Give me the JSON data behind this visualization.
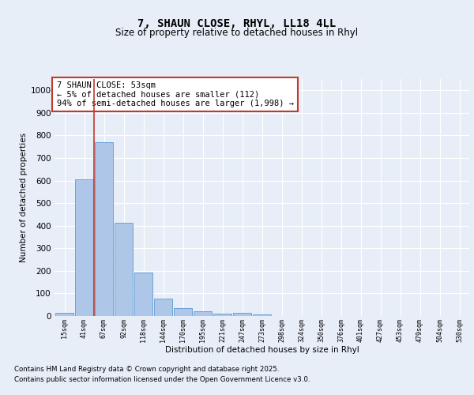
{
  "title": "7, SHAUN CLOSE, RHYL, LL18 4LL",
  "subtitle": "Size of property relative to detached houses in Rhyl",
  "xlabel": "Distribution of detached houses by size in Rhyl",
  "ylabel": "Number of detached properties",
  "bar_labels": [
    "15sqm",
    "41sqm",
    "67sqm",
    "92sqm",
    "118sqm",
    "144sqm",
    "170sqm",
    "195sqm",
    "221sqm",
    "247sqm",
    "273sqm",
    "298sqm",
    "324sqm",
    "350sqm",
    "376sqm",
    "401sqm",
    "427sqm",
    "453sqm",
    "479sqm",
    "504sqm",
    "530sqm"
  ],
  "bar_values": [
    15,
    607,
    770,
    413,
    193,
    78,
    35,
    20,
    12,
    15,
    6,
    0,
    0,
    0,
    0,
    0,
    0,
    0,
    0,
    0,
    0
  ],
  "bar_color": "#aec6e8",
  "bar_edge_color": "#5b9bd5",
  "vline_x": 1.5,
  "vline_color": "#c0392b",
  "annotation_text": "7 SHAUN CLOSE: 53sqm\n← 5% of detached houses are smaller (112)\n94% of semi-detached houses are larger (1,998) →",
  "annotation_box_color": "#ffffff",
  "annotation_box_edge": "#c0392b",
  "ylim": [
    0,
    1050
  ],
  "yticks": [
    0,
    100,
    200,
    300,
    400,
    500,
    600,
    700,
    800,
    900,
    1000
  ],
  "background_color": "#e8eef8",
  "grid_color": "#ffffff",
  "footer_line1": "Contains HM Land Registry data © Crown copyright and database right 2025.",
  "footer_line2": "Contains public sector information licensed under the Open Government Licence v3.0."
}
